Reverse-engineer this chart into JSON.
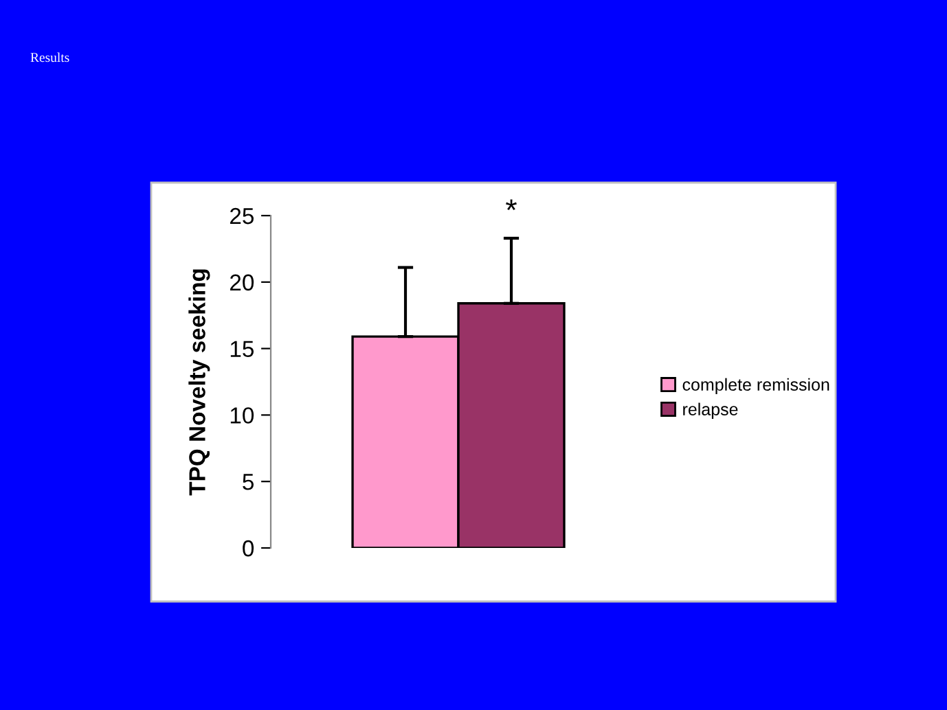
{
  "chart_data": {
    "type": "bar",
    "title": "Results",
    "ylabel": "TPQ Novelty seeking",
    "categories": [
      null
    ],
    "series": [
      {
        "name": "complete remission",
        "color": "#ff99cc",
        "values": [
          15.9
        ],
        "errors": [
          [
            15.9,
            21.1
          ]
        ]
      },
      {
        "name": "relapse",
        "color": "#993366",
        "values": [
          18.4
        ],
        "errors": [
          [
            18.4,
            23.3
          ]
        ]
      }
    ],
    "annotations": [
      {
        "text": "*",
        "y": 23.3
      }
    ],
    "ylim": [
      0,
      25
    ],
    "yticks": [
      0,
      5,
      10,
      15,
      20,
      25
    ],
    "grid": false,
    "legend": "right",
    "tick_labels": "y"
  }
}
